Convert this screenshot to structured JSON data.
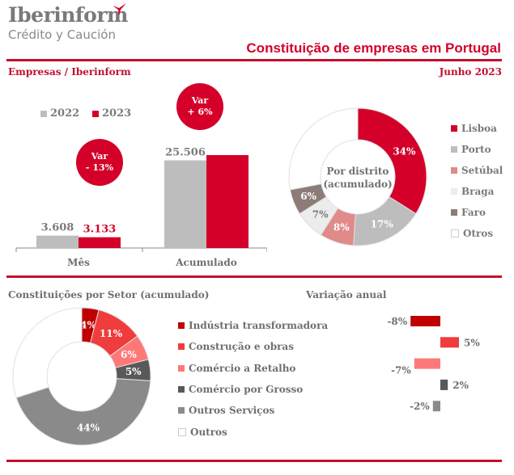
{
  "brand": {
    "name": "Iberinform",
    "tagline": "Crédito y Caución",
    "accent": "#d4002a"
  },
  "header": {
    "title": "Constituição de empresas em Portugal",
    "source": "Empresas / Iberinform",
    "period": "Junho 2023"
  },
  "chart_data": [
    {
      "type": "bar",
      "title": "",
      "categories": [
        "Mês",
        "Acumulado"
      ],
      "series": [
        {
          "name": "2022",
          "color": "#bdbdbd",
          "values": [
            3608,
            25506
          ],
          "labels": [
            "3.608",
            "25.506"
          ]
        },
        {
          "name": "2023",
          "color": "#d4002a",
          "values": [
            3133,
            27036
          ],
          "labels": [
            "3.133",
            ""
          ]
        }
      ],
      "annotations": [
        {
          "category": "Mês",
          "line1": "Var",
          "line2": "- 13%"
        },
        {
          "category": "Acumulado",
          "line1": "Var",
          "line2": "+ 6%"
        }
      ],
      "legend": "top-left",
      "xlabel": "",
      "ylabel": ""
    },
    {
      "type": "pie",
      "title": "Por distrito (acumulado)",
      "center_label": [
        "Por distrito",
        "(acumulado)"
      ],
      "categories": [
        "Lisboa",
        "Porto",
        "Setúbal",
        "Braga",
        "Faro",
        "Otros"
      ],
      "values": [
        34,
        17,
        8,
        7,
        6,
        28
      ],
      "labels": [
        "34%",
        "17%",
        "8%",
        "7%",
        "6%",
        ""
      ],
      "colors": [
        "#d4002a",
        "#bdbdbd",
        "#e08a8a",
        "#ececec",
        "#8c7b76",
        "#ffffff"
      ],
      "legend": "right"
    },
    {
      "type": "pie",
      "title": "Constituições por Setor (acumulado)",
      "categories": [
        "Indústria transformadora",
        "Construção e obras",
        "Comércio a Retalho",
        "Comércio por Grosso",
        "Outros Serviços",
        "Outros"
      ],
      "values": [
        4,
        11,
        6,
        5,
        44,
        30
      ],
      "labels": [
        "4%",
        "11%",
        "6%",
        "5%",
        "44%",
        ""
      ],
      "colors": [
        "#c00000",
        "#f03c3c",
        "#ff7878",
        "#595959",
        "#8a8a8a",
        "#ffffff"
      ],
      "legend": "right"
    },
    {
      "type": "bar",
      "orientation": "horizontal",
      "title": "Variação anual",
      "categories": [
        "Indústria transformadora",
        "Construção e obras",
        "Comércio a Retalho",
        "Comércio por Grosso",
        "Outros Serviços"
      ],
      "values": [
        -8,
        5,
        -7,
        2,
        -2
      ],
      "labels": [
        "-8%",
        "5%",
        "-7%",
        "2%",
        "-2%"
      ],
      "colors": [
        "#c00000",
        "#f03c3c",
        "#ff7878",
        "#595959",
        "#8a8a8a"
      ]
    }
  ]
}
